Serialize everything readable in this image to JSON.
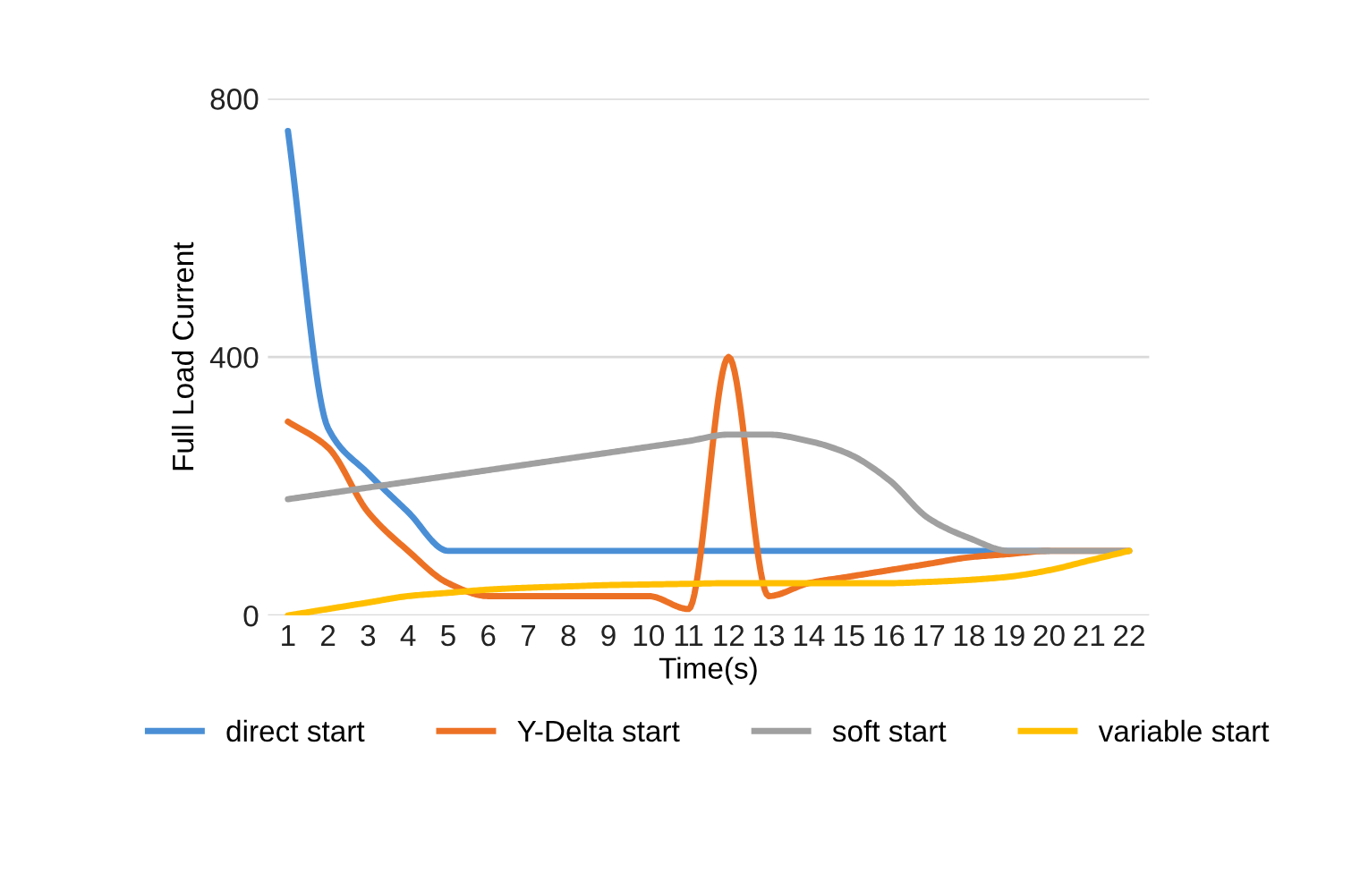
{
  "chart_data": {
    "type": "line",
    "xlabel": "Time(s)",
    "ylabel": "Full Load Current",
    "categories": [
      "1",
      "2",
      "3",
      "4",
      "5",
      "6",
      "7",
      "8",
      "9",
      "10",
      "11",
      "12",
      "13",
      "14",
      "15",
      "16",
      "17",
      "18",
      "19",
      "20",
      "21",
      "22"
    ],
    "series": [
      {
        "name": "direct start",
        "color": "#4a8fd6",
        "values": [
          750,
          290,
          220,
          160,
          100,
          100,
          100,
          100,
          100,
          100,
          100,
          100,
          100,
          100,
          100,
          100,
          100,
          100,
          100,
          100,
          null,
          null
        ]
      },
      {
        "name": "Y-Delta start",
        "color": "#ed7125",
        "values": [
          300,
          260,
          160,
          100,
          50,
          30,
          30,
          30,
          30,
          30,
          10,
          400,
          30,
          50,
          60,
          70,
          80,
          90,
          95,
          100,
          100,
          100
        ]
      },
      {
        "name": "soft start",
        "color": "#a0a0a0",
        "values": [
          180,
          189,
          198,
          207,
          216,
          225,
          234,
          243,
          252,
          261,
          270,
          280,
          280,
          270,
          250,
          210,
          150,
          120,
          100,
          100,
          100,
          100
        ]
      },
      {
        "name": "variable start",
        "color": "#ffbf00",
        "values": [
          0,
          10,
          20,
          30,
          35,
          40,
          43,
          45,
          47,
          48,
          49,
          50,
          50,
          50,
          50,
          50,
          52,
          55,
          60,
          70,
          85,
          100
        ]
      }
    ],
    "ylim": [
      0,
      800
    ],
    "yticks": [
      0,
      400,
      800
    ],
    "grid": "y",
    "legend": "bottom",
    "marker": "none",
    "line_style": "solid"
  }
}
